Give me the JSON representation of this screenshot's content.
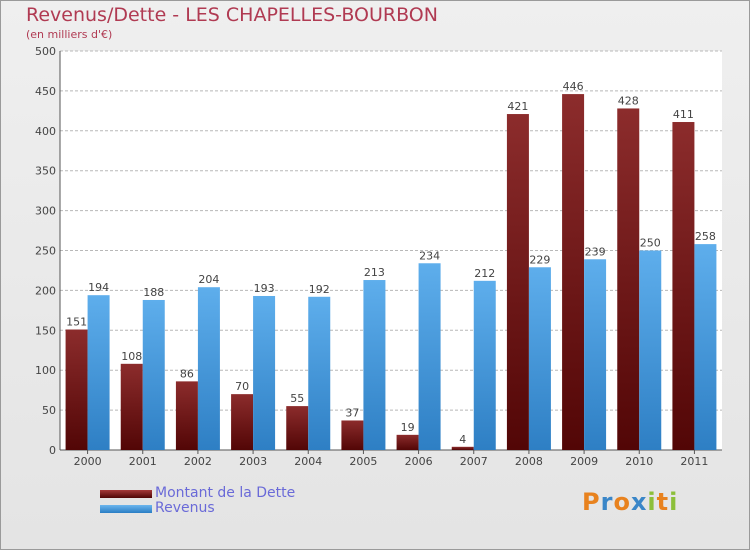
{
  "title": "Revenus/Dette - LES CHAPELLES-BOURBON",
  "subtitle": "(en milliers d'€)",
  "colors": {
    "dette": "#7a1a1a",
    "revenus": "#3d95dc",
    "grid": "#b8b8b8",
    "axis_text": "#444444",
    "value_text": "#444444"
  },
  "chart_data": {
    "type": "bar",
    "categories": [
      "2000",
      "2001",
      "2002",
      "2003",
      "2004",
      "2005",
      "2006",
      "2007",
      "2008",
      "2009",
      "2010",
      "2011"
    ],
    "series": [
      {
        "name": "Montant de la Dette",
        "values": [
          151,
          108,
          86,
          70,
          55,
          37,
          19,
          4,
          421,
          446,
          428,
          411
        ]
      },
      {
        "name": "Revenus",
        "values": [
          194,
          188,
          204,
          193,
          192,
          213,
          234,
          212,
          229,
          239,
          250,
          258
        ]
      }
    ],
    "yticks": [
      0,
      50,
      100,
      150,
      200,
      250,
      300,
      350,
      400,
      450,
      500
    ],
    "ylim": [
      0,
      500
    ],
    "grid": true,
    "legend": "bottom-left"
  },
  "legend": {
    "items": [
      {
        "label": "Montant de la Dette",
        "color": "#6b0f10"
      },
      {
        "label": "Revenus",
        "color": "#3d95dc"
      }
    ]
  },
  "logo": {
    "letters": [
      {
        "ch": "P",
        "color": "#e8821e"
      },
      {
        "ch": "r",
        "color": "#3a86c8"
      },
      {
        "ch": "o",
        "color": "#e8821e"
      },
      {
        "ch": "x",
        "color": "#3a86c8"
      },
      {
        "ch": "i",
        "color": "#8cbf3a"
      },
      {
        "ch": "t",
        "color": "#e8821e"
      },
      {
        "ch": "i",
        "color": "#8cbf3a"
      }
    ]
  }
}
